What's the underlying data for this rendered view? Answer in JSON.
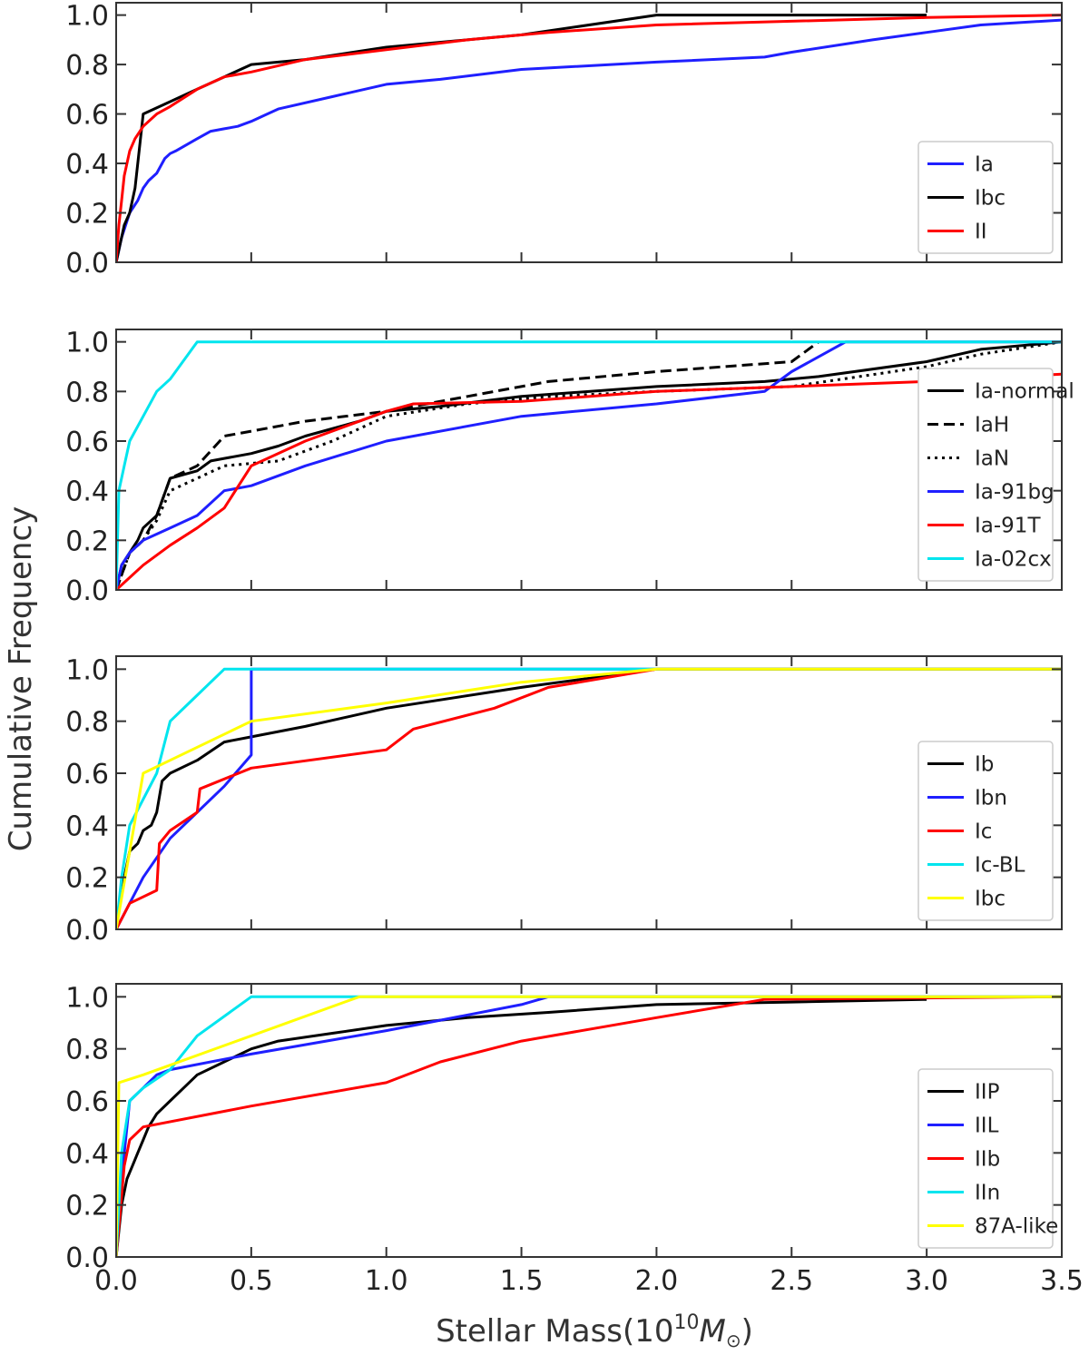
{
  "chart_data": {
    "type": "line",
    "shared_xlabel": "Stellar Mass(10",
    "shared_xlabel_exp": "10",
    "shared_xlabel_unit": "M",
    "shared_xlabel_close": ")",
    "shared_ylabel": "Cumulative Frequency",
    "xlim": [
      0,
      3.5
    ],
    "xticks": [
      0.0,
      0.5,
      1.0,
      1.5,
      2.0,
      2.5,
      3.0,
      3.5
    ],
    "xtick_labels": [
      "0.0",
      "0.5",
      "1.0",
      "1.5",
      "2.0",
      "2.5",
      "3.0",
      "3.5"
    ],
    "ylim": [
      0,
      1.05
    ],
    "yticks": [
      0.0,
      0.2,
      0.4,
      0.6,
      0.8,
      1.0
    ],
    "ytick_labels": [
      "0.0",
      "0.2",
      "0.4",
      "0.6",
      "0.8",
      "1.0"
    ],
    "grid": false,
    "panels": [
      {
        "legend_position": "lower-right",
        "series": [
          {
            "name": "Ia",
            "color": "#1f1fff",
            "dash": "solid",
            "x": [
              0,
              0.02,
              0.05,
              0.08,
              0.1,
              0.12,
              0.15,
              0.18,
              0.2,
              0.22,
              0.3,
              0.35,
              0.4,
              0.45,
              0.5,
              0.6,
              0.8,
              1.0,
              1.2,
              1.5,
              2.0,
              2.4,
              2.5,
              2.8,
              3.0,
              3.2,
              3.5
            ],
            "y": [
              0,
              0.1,
              0.2,
              0.25,
              0.3,
              0.33,
              0.36,
              0.42,
              0.44,
              0.45,
              0.5,
              0.53,
              0.54,
              0.55,
              0.57,
              0.62,
              0.67,
              0.72,
              0.74,
              0.78,
              0.81,
              0.83,
              0.85,
              0.9,
              0.93,
              0.96,
              0.98
            ]
          },
          {
            "name": "Ibc",
            "color": "#000000",
            "dash": "solid",
            "x": [
              0,
              0.03,
              0.05,
              0.07,
              0.1,
              0.2,
              0.3,
              0.4,
              0.5,
              0.7,
              1.0,
              1.5,
              2.0,
              2.5,
              3.0
            ],
            "y": [
              0,
              0.15,
              0.2,
              0.3,
              0.6,
              0.65,
              0.7,
              0.75,
              0.8,
              0.82,
              0.87,
              0.92,
              1.0,
              1.0,
              1.0
            ]
          },
          {
            "name": "II",
            "color": "#ff0000",
            "dash": "solid",
            "x": [
              0,
              0.01,
              0.02,
              0.03,
              0.05,
              0.07,
              0.1,
              0.15,
              0.2,
              0.3,
              0.4,
              0.5,
              0.7,
              1.0,
              1.3,
              1.6,
              2.0,
              3.0,
              3.5
            ],
            "y": [
              0,
              0.15,
              0.25,
              0.35,
              0.45,
              0.5,
              0.55,
              0.6,
              0.63,
              0.7,
              0.75,
              0.77,
              0.82,
              0.86,
              0.9,
              0.93,
              0.96,
              0.99,
              1.0
            ]
          }
        ]
      },
      {
        "legend_position": "lower-right",
        "series": [
          {
            "name": "Ia-normal",
            "color": "#000000",
            "dash": "solid",
            "x": [
              0,
              0.02,
              0.05,
              0.08,
              0.1,
              0.15,
              0.2,
              0.3,
              0.35,
              0.4,
              0.5,
              0.6,
              0.7,
              0.9,
              1.0,
              1.2,
              1.5,
              2.0,
              2.4,
              2.6,
              3.0,
              3.2,
              3.5
            ],
            "y": [
              0,
              0.1,
              0.15,
              0.2,
              0.25,
              0.3,
              0.45,
              0.48,
              0.52,
              0.53,
              0.55,
              0.58,
              0.62,
              0.68,
              0.72,
              0.74,
              0.78,
              0.82,
              0.84,
              0.86,
              0.92,
              0.97,
              1.0
            ]
          },
          {
            "name": "IaH",
            "color": "#000000",
            "dash": "dashed",
            "x": [
              0,
              0.05,
              0.1,
              0.15,
              0.2,
              0.3,
              0.4,
              0.5,
              0.7,
              1.0,
              1.3,
              1.6,
              2.0,
              2.5,
              2.6
            ],
            "y": [
              0,
              0.15,
              0.2,
              0.3,
              0.45,
              0.5,
              0.62,
              0.64,
              0.68,
              0.72,
              0.78,
              0.84,
              0.88,
              0.92,
              1.0
            ]
          },
          {
            "name": "IaN",
            "color": "#000000",
            "dash": "dotted",
            "x": [
              0,
              0.05,
              0.1,
              0.15,
              0.2,
              0.3,
              0.4,
              0.6,
              0.8,
              1.0,
              1.3,
              1.6,
              2.0,
              2.5,
              3.0,
              3.2,
              3.5
            ],
            "y": [
              0,
              0.15,
              0.2,
              0.28,
              0.4,
              0.45,
              0.5,
              0.52,
              0.6,
              0.7,
              0.75,
              0.78,
              0.8,
              0.82,
              0.9,
              0.95,
              1.0
            ]
          },
          {
            "name": "Ia-91bg",
            "color": "#1f1fff",
            "dash": "solid",
            "x": [
              0,
              0.02,
              0.05,
              0.1,
              0.2,
              0.3,
              0.4,
              0.5,
              0.7,
              1.0,
              1.5,
              2.0,
              2.4,
              2.5,
              2.7,
              3.5
            ],
            "y": [
              0,
              0.1,
              0.15,
              0.2,
              0.25,
              0.3,
              0.4,
              0.42,
              0.5,
              0.6,
              0.7,
              0.75,
              0.8,
              0.88,
              1.0,
              1.0
            ]
          },
          {
            "name": "Ia-91T",
            "color": "#ff0000",
            "dash": "solid",
            "x": [
              0,
              0.1,
              0.2,
              0.3,
              0.4,
              0.5,
              0.7,
              1.0,
              1.1,
              1.5,
              2.0,
              3.0,
              3.5
            ],
            "y": [
              0,
              0.1,
              0.18,
              0.25,
              0.33,
              0.5,
              0.6,
              0.72,
              0.75,
              0.76,
              0.8,
              0.84,
              0.87
            ]
          },
          {
            "name": "Ia-02cx",
            "color": "#00e5ee",
            "dash": "solid",
            "x": [
              0,
              0.01,
              0.03,
              0.05,
              0.1,
              0.15,
              0.2,
              0.3,
              3.5
            ],
            "y": [
              0,
              0.4,
              0.5,
              0.6,
              0.7,
              0.8,
              0.85,
              1.0,
              1.0
            ]
          }
        ]
      },
      {
        "legend_position": "lower-right",
        "series": [
          {
            "name": "Ib",
            "color": "#000000",
            "dash": "solid",
            "x": [
              0,
              0.03,
              0.05,
              0.08,
              0.1,
              0.13,
              0.15,
              0.17,
              0.2,
              0.3,
              0.4,
              0.5,
              0.7,
              1.0,
              1.5,
              2.0,
              3.5
            ],
            "y": [
              0,
              0.2,
              0.3,
              0.33,
              0.38,
              0.4,
              0.45,
              0.57,
              0.6,
              0.65,
              0.72,
              0.74,
              0.78,
              0.85,
              0.93,
              1.0,
              1.0
            ]
          },
          {
            "name": "Ibn",
            "color": "#1f1fff",
            "dash": "solid",
            "x": [
              0,
              0.1,
              0.2,
              0.3,
              0.4,
              0.5,
              0.5,
              3.5
            ],
            "y": [
              0,
              0.2,
              0.35,
              0.45,
              0.55,
              0.67,
              1.0,
              1.0
            ]
          },
          {
            "name": "Ic",
            "color": "#ff0000",
            "dash": "solid",
            "x": [
              0,
              0.05,
              0.15,
              0.16,
              0.2,
              0.3,
              0.31,
              0.5,
              1.0,
              1.1,
              1.4,
              1.6,
              2.0,
              3.5
            ],
            "y": [
              0,
              0.1,
              0.15,
              0.33,
              0.38,
              0.45,
              0.54,
              0.62,
              0.69,
              0.77,
              0.85,
              0.93,
              1.0,
              1.0
            ]
          },
          {
            "name": "Ic-BL",
            "color": "#00e5ee",
            "dash": "solid",
            "x": [
              0,
              0.02,
              0.05,
              0.1,
              0.15,
              0.2,
              0.3,
              0.4,
              3.5
            ],
            "y": [
              0,
              0.2,
              0.4,
              0.5,
              0.6,
              0.8,
              0.9,
              1.0,
              1.0
            ]
          },
          {
            "name": "Ibc",
            "color": "#ffff00",
            "dash": "solid",
            "x": [
              0,
              0.05,
              0.1,
              0.2,
              0.5,
              1.0,
              1.5,
              2.0,
              3.5
            ],
            "y": [
              0,
              0.3,
              0.6,
              0.65,
              0.8,
              0.87,
              0.95,
              1.0,
              1.0
            ]
          }
        ]
      },
      {
        "legend_position": "lower-right",
        "series": [
          {
            "name": "IIP",
            "color": "#000000",
            "dash": "solid",
            "x": [
              0,
              0.02,
              0.04,
              0.06,
              0.08,
              0.1,
              0.12,
              0.15,
              0.2,
              0.25,
              0.3,
              0.4,
              0.5,
              0.6,
              0.8,
              1.0,
              1.3,
              1.6,
              2.0,
              2.5,
              3.0
            ],
            "y": [
              0,
              0.2,
              0.3,
              0.35,
              0.4,
              0.45,
              0.5,
              0.55,
              0.6,
              0.65,
              0.7,
              0.75,
              0.8,
              0.83,
              0.86,
              0.89,
              0.92,
              0.94,
              0.97,
              0.98,
              0.99
            ]
          },
          {
            "name": "IIL",
            "color": "#1f1fff",
            "dash": "solid",
            "x": [
              0,
              0.02,
              0.05,
              0.1,
              0.15,
              0.2,
              0.5,
              1.0,
              1.5,
              1.6,
              3.5
            ],
            "y": [
              0,
              0.3,
              0.6,
              0.65,
              0.7,
              0.72,
              0.78,
              0.87,
              0.97,
              1.0,
              1.0
            ]
          },
          {
            "name": "IIb",
            "color": "#ff0000",
            "dash": "solid",
            "x": [
              0,
              0.03,
              0.05,
              0.1,
              0.5,
              1.0,
              1.2,
              1.5,
              2.0,
              2.4,
              3.5
            ],
            "y": [
              0,
              0.35,
              0.45,
              0.5,
              0.58,
              0.67,
              0.75,
              0.83,
              0.92,
              0.99,
              1.0
            ]
          },
          {
            "name": "IIn",
            "color": "#00e5ee",
            "dash": "solid",
            "x": [
              0,
              0.01,
              0.02,
              0.05,
              0.1,
              0.2,
              0.3,
              0.5,
              3.5
            ],
            "y": [
              0,
              0.2,
              0.4,
              0.6,
              0.65,
              0.72,
              0.85,
              1.0,
              1.0
            ]
          },
          {
            "name": "87A-like",
            "color": "#ffff00",
            "dash": "solid",
            "x": [
              0,
              0.01,
              0.1,
              0.5,
              0.9,
              3.5
            ],
            "y": [
              0,
              0.67,
              0.7,
              0.85,
              1.0,
              1.0
            ]
          }
        ]
      }
    ]
  }
}
